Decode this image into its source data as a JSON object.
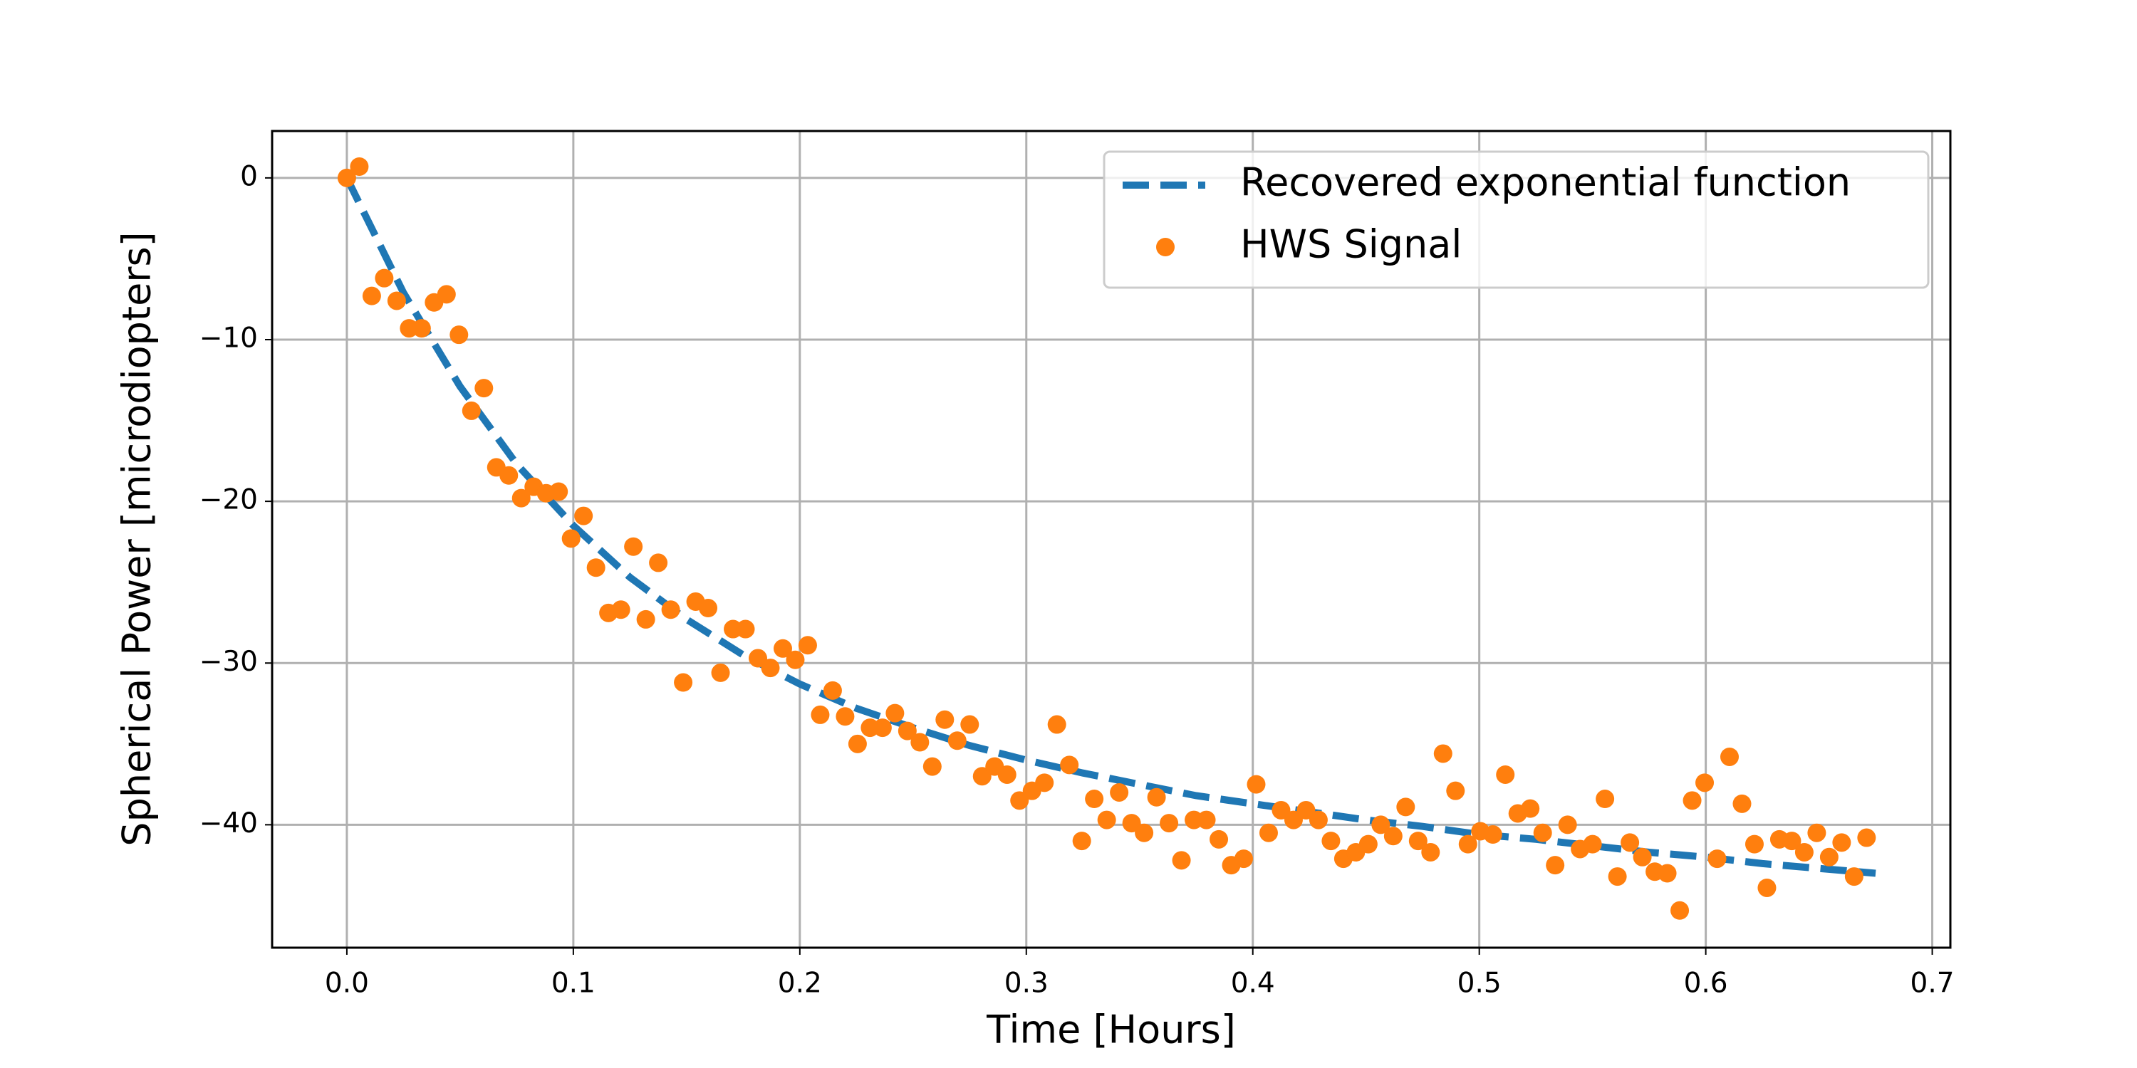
{
  "chart_data": {
    "type": "scatter",
    "xlabel": "Time [Hours]",
    "ylabel": "Spherical Power [microdiopters]",
    "xlim": [
      -0.033,
      0.708
    ],
    "ylim": [
      -47.6,
      2.9
    ],
    "xticks": [
      {
        "value": 0,
        "label": "0.0"
      },
      0.1,
      0.2,
      0.3,
      0.4,
      0.5,
      0.6,
      0.7
    ],
    "yticks": [
      {
        "value": -40,
        "label": "−40"
      },
      {
        "value": -30,
        "label": "−30"
      },
      {
        "value": -20,
        "label": "−20"
      },
      {
        "value": -10,
        "label": "−10"
      },
      0
    ],
    "grid": true,
    "legend": "upper right",
    "series": [
      {
        "name": "Recovered exponential function",
        "type": "line",
        "linestyle": "dashed",
        "color": "#1f77b4",
        "x": [
          0,
          0.025,
          0.05,
          0.075,
          0.1,
          0.125,
          0.15,
          0.175,
          0.2,
          0.225,
          0.25,
          0.275,
          0.3,
          0.325,
          0.35,
          0.375,
          0.4,
          0.425,
          0.45,
          0.475,
          0.5,
          0.525,
          0.55,
          0.575,
          0.6,
          0.625,
          0.65,
          0.675
        ],
        "values": [
          0,
          -7.1,
          -12.9,
          -17.7,
          -21.5,
          -24.7,
          -27.3,
          -29.5,
          -31.3,
          -32.8,
          -34.0,
          -35.1,
          -36.0,
          -36.8,
          -37.5,
          -38.2,
          -38.7,
          -39.2,
          -39.7,
          -40.1,
          -40.6,
          -40.9,
          -41.3,
          -41.7,
          -42.0,
          -42.4,
          -42.7,
          -43.0
        ]
      },
      {
        "name": "HWS Signal",
        "type": "scatter",
        "color": "#ff7f0e",
        "x": [
          0,
          0.0055,
          0.011,
          0.0165,
          0.022,
          0.0275,
          0.033,
          0.0385,
          0.044,
          0.0495,
          0.055,
          0.0605,
          0.066,
          0.0715,
          0.077,
          0.0825,
          0.088,
          0.0935,
          0.099,
          0.1045,
          0.11,
          0.1155,
          0.121,
          0.1265,
          0.132,
          0.1375,
          0.143,
          0.1485,
          0.154,
          0.1595,
          0.165,
          0.1705,
          0.176,
          0.1815,
          0.187,
          0.1925,
          0.198,
          0.2035,
          0.209,
          0.2145,
          0.22,
          0.2255,
          0.231,
          0.2365,
          0.242,
          0.2475,
          0.253,
          0.2585,
          0.264,
          0.2695,
          0.275,
          0.2805,
          0.286,
          0.2915,
          0.297,
          0.3025,
          0.308,
          0.3135,
          0.319,
          0.3245,
          0.33,
          0.3355,
          0.341,
          0.3465,
          0.352,
          0.3575,
          0.363,
          0.3685,
          0.374,
          0.3795,
          0.385,
          0.3905,
          0.396,
          0.4015,
          0.407,
          0.4125,
          0.418,
          0.4235,
          0.429,
          0.4345,
          0.44,
          0.4455,
          0.451,
          0.4565,
          0.462,
          0.4675,
          0.473,
          0.4785,
          0.484,
          0.4895,
          0.495,
          0.5005,
          0.506,
          0.5115,
          0.517,
          0.5225,
          0.528,
          0.5335,
          0.539,
          0.5445,
          0.55,
          0.5555,
          0.561,
          0.5665,
          0.572,
          0.5775,
          0.583,
          0.5885,
          0.594,
          0.5995,
          0.605,
          0.6105,
          0.616,
          0.6215,
          0.627,
          0.6325,
          0.638,
          0.6435,
          0.649,
          0.6545,
          0.66,
          0.6655,
          0.671
        ],
        "values": [
          0,
          0.7,
          -7.3,
          -6.2,
          -7.6,
          -9.3,
          -9.3,
          -7.7,
          -7.2,
          -9.7,
          -14.4,
          -13.0,
          -17.9,
          -18.4,
          -19.8,
          -19.1,
          -19.5,
          -19.4,
          -22.3,
          -20.9,
          -24.1,
          -26.9,
          -26.7,
          -22.8,
          -27.3,
          -23.8,
          -26.7,
          -31.2,
          -26.2,
          -26.6,
          -30.6,
          -27.9,
          -27.9,
          -29.7,
          -30.3,
          -29.1,
          -29.8,
          -28.9,
          -33.2,
          -31.7,
          -33.3,
          -35.0,
          -34.0,
          -34.0,
          -33.1,
          -34.2,
          -34.9,
          -36.4,
          -33.5,
          -34.8,
          -33.8,
          -37.0,
          -36.4,
          -36.9,
          -38.5,
          -37.9,
          -37.4,
          -33.8,
          -36.3,
          -41.0,
          -38.4,
          -39.7,
          -38.0,
          -39.9,
          -40.5,
          -38.3,
          -39.9,
          -42.2,
          -39.7,
          -39.7,
          -40.9,
          -42.5,
          -42.1,
          -37.5,
          -40.5,
          -39.1,
          -39.7,
          -39.1,
          -39.7,
          -41.0,
          -42.1,
          -41.7,
          -41.2,
          -40.0,
          -40.7,
          -38.9,
          -41.0,
          -41.7,
          -35.6,
          -37.9,
          -41.2,
          -40.4,
          -40.6,
          -36.9,
          -39.3,
          -39.0,
          -40.5,
          -42.5,
          -40.0,
          -41.5,
          -41.2,
          -38.4,
          -43.2,
          -41.1,
          -42.0,
          -42.9,
          -43.0,
          -45.3,
          -38.5,
          -37.4,
          -42.1,
          -35.8,
          -38.7,
          -41.2,
          -43.9,
          -40.9,
          -41.0,
          -41.7,
          -40.5,
          -42.0,
          -41.1,
          -43.2,
          -40.8
        ]
      }
    ]
  }
}
